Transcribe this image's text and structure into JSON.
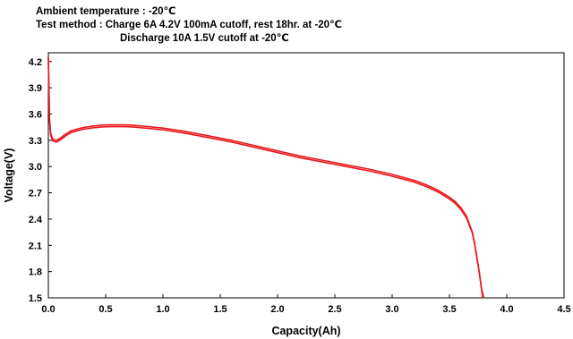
{
  "header": {
    "line1": "Ambient temperature : -20℃",
    "line2": "Test method : Charge  6A 4.2V 100mA cutoff, rest 18hr. at -20℃",
    "line3": "Discharge  10A 1.5V cutoff at -20℃"
  },
  "chart_data": {
    "type": "line",
    "xlabel": "Capacity(Ah)",
    "ylabel": "Voltage(V)",
    "xlim": [
      0.0,
      4.5
    ],
    "ylim": [
      1.5,
      4.3
    ],
    "x_ticks": [
      "0.0",
      "0.5",
      "1.0",
      "1.5",
      "2.0",
      "2.5",
      "3.0",
      "3.5",
      "4.0",
      "4.5"
    ],
    "y_ticks": [
      "1.5",
      "1.8",
      "2.1",
      "2.4",
      "2.7",
      "3.0",
      "3.3",
      "3.6",
      "3.9",
      "4.2"
    ],
    "grid": false,
    "line_color": "#e8191d",
    "series": [
      {
        "x": [
          0.0,
          0.01,
          0.02,
          0.04,
          0.07,
          0.1,
          0.15,
          0.2,
          0.3,
          0.4,
          0.5,
          0.6,
          0.7,
          0.8,
          1.0,
          1.2,
          1.4,
          1.6,
          1.8,
          2.0,
          2.2,
          2.4,
          2.6,
          2.8,
          3.0,
          3.2,
          3.3,
          3.4,
          3.5,
          3.55,
          3.6,
          3.65,
          3.7,
          3.72,
          3.74,
          3.76,
          3.78,
          3.79
        ],
        "y": [
          4.25,
          3.55,
          3.38,
          3.31,
          3.3,
          3.32,
          3.37,
          3.41,
          3.445,
          3.465,
          3.475,
          3.477,
          3.475,
          3.465,
          3.44,
          3.4,
          3.35,
          3.3,
          3.24,
          3.18,
          3.12,
          3.07,
          3.02,
          2.97,
          2.91,
          2.84,
          2.79,
          2.73,
          2.65,
          2.6,
          2.53,
          2.43,
          2.25,
          2.12,
          1.96,
          1.8,
          1.6,
          1.5
        ]
      },
      {
        "x": [
          0.0,
          0.01,
          0.02,
          0.04,
          0.07,
          0.1,
          0.15,
          0.2,
          0.3,
          0.4,
          0.5,
          0.6,
          0.7,
          0.8,
          1.0,
          1.2,
          1.4,
          1.6,
          1.8,
          2.0,
          2.2,
          2.4,
          2.6,
          2.8,
          3.0,
          3.2,
          3.3,
          3.4,
          3.5,
          3.55,
          3.6,
          3.65,
          3.7,
          3.72,
          3.74,
          3.76,
          3.78,
          3.8
        ],
        "y": [
          4.25,
          3.52,
          3.36,
          3.29,
          3.28,
          3.3,
          3.35,
          3.39,
          3.425,
          3.445,
          3.455,
          3.457,
          3.455,
          3.445,
          3.42,
          3.38,
          3.33,
          3.28,
          3.22,
          3.16,
          3.1,
          3.05,
          3.0,
          2.95,
          2.89,
          2.82,
          2.77,
          2.71,
          2.63,
          2.58,
          2.51,
          2.41,
          2.24,
          2.11,
          1.95,
          1.79,
          1.6,
          1.5
        ]
      }
    ]
  }
}
